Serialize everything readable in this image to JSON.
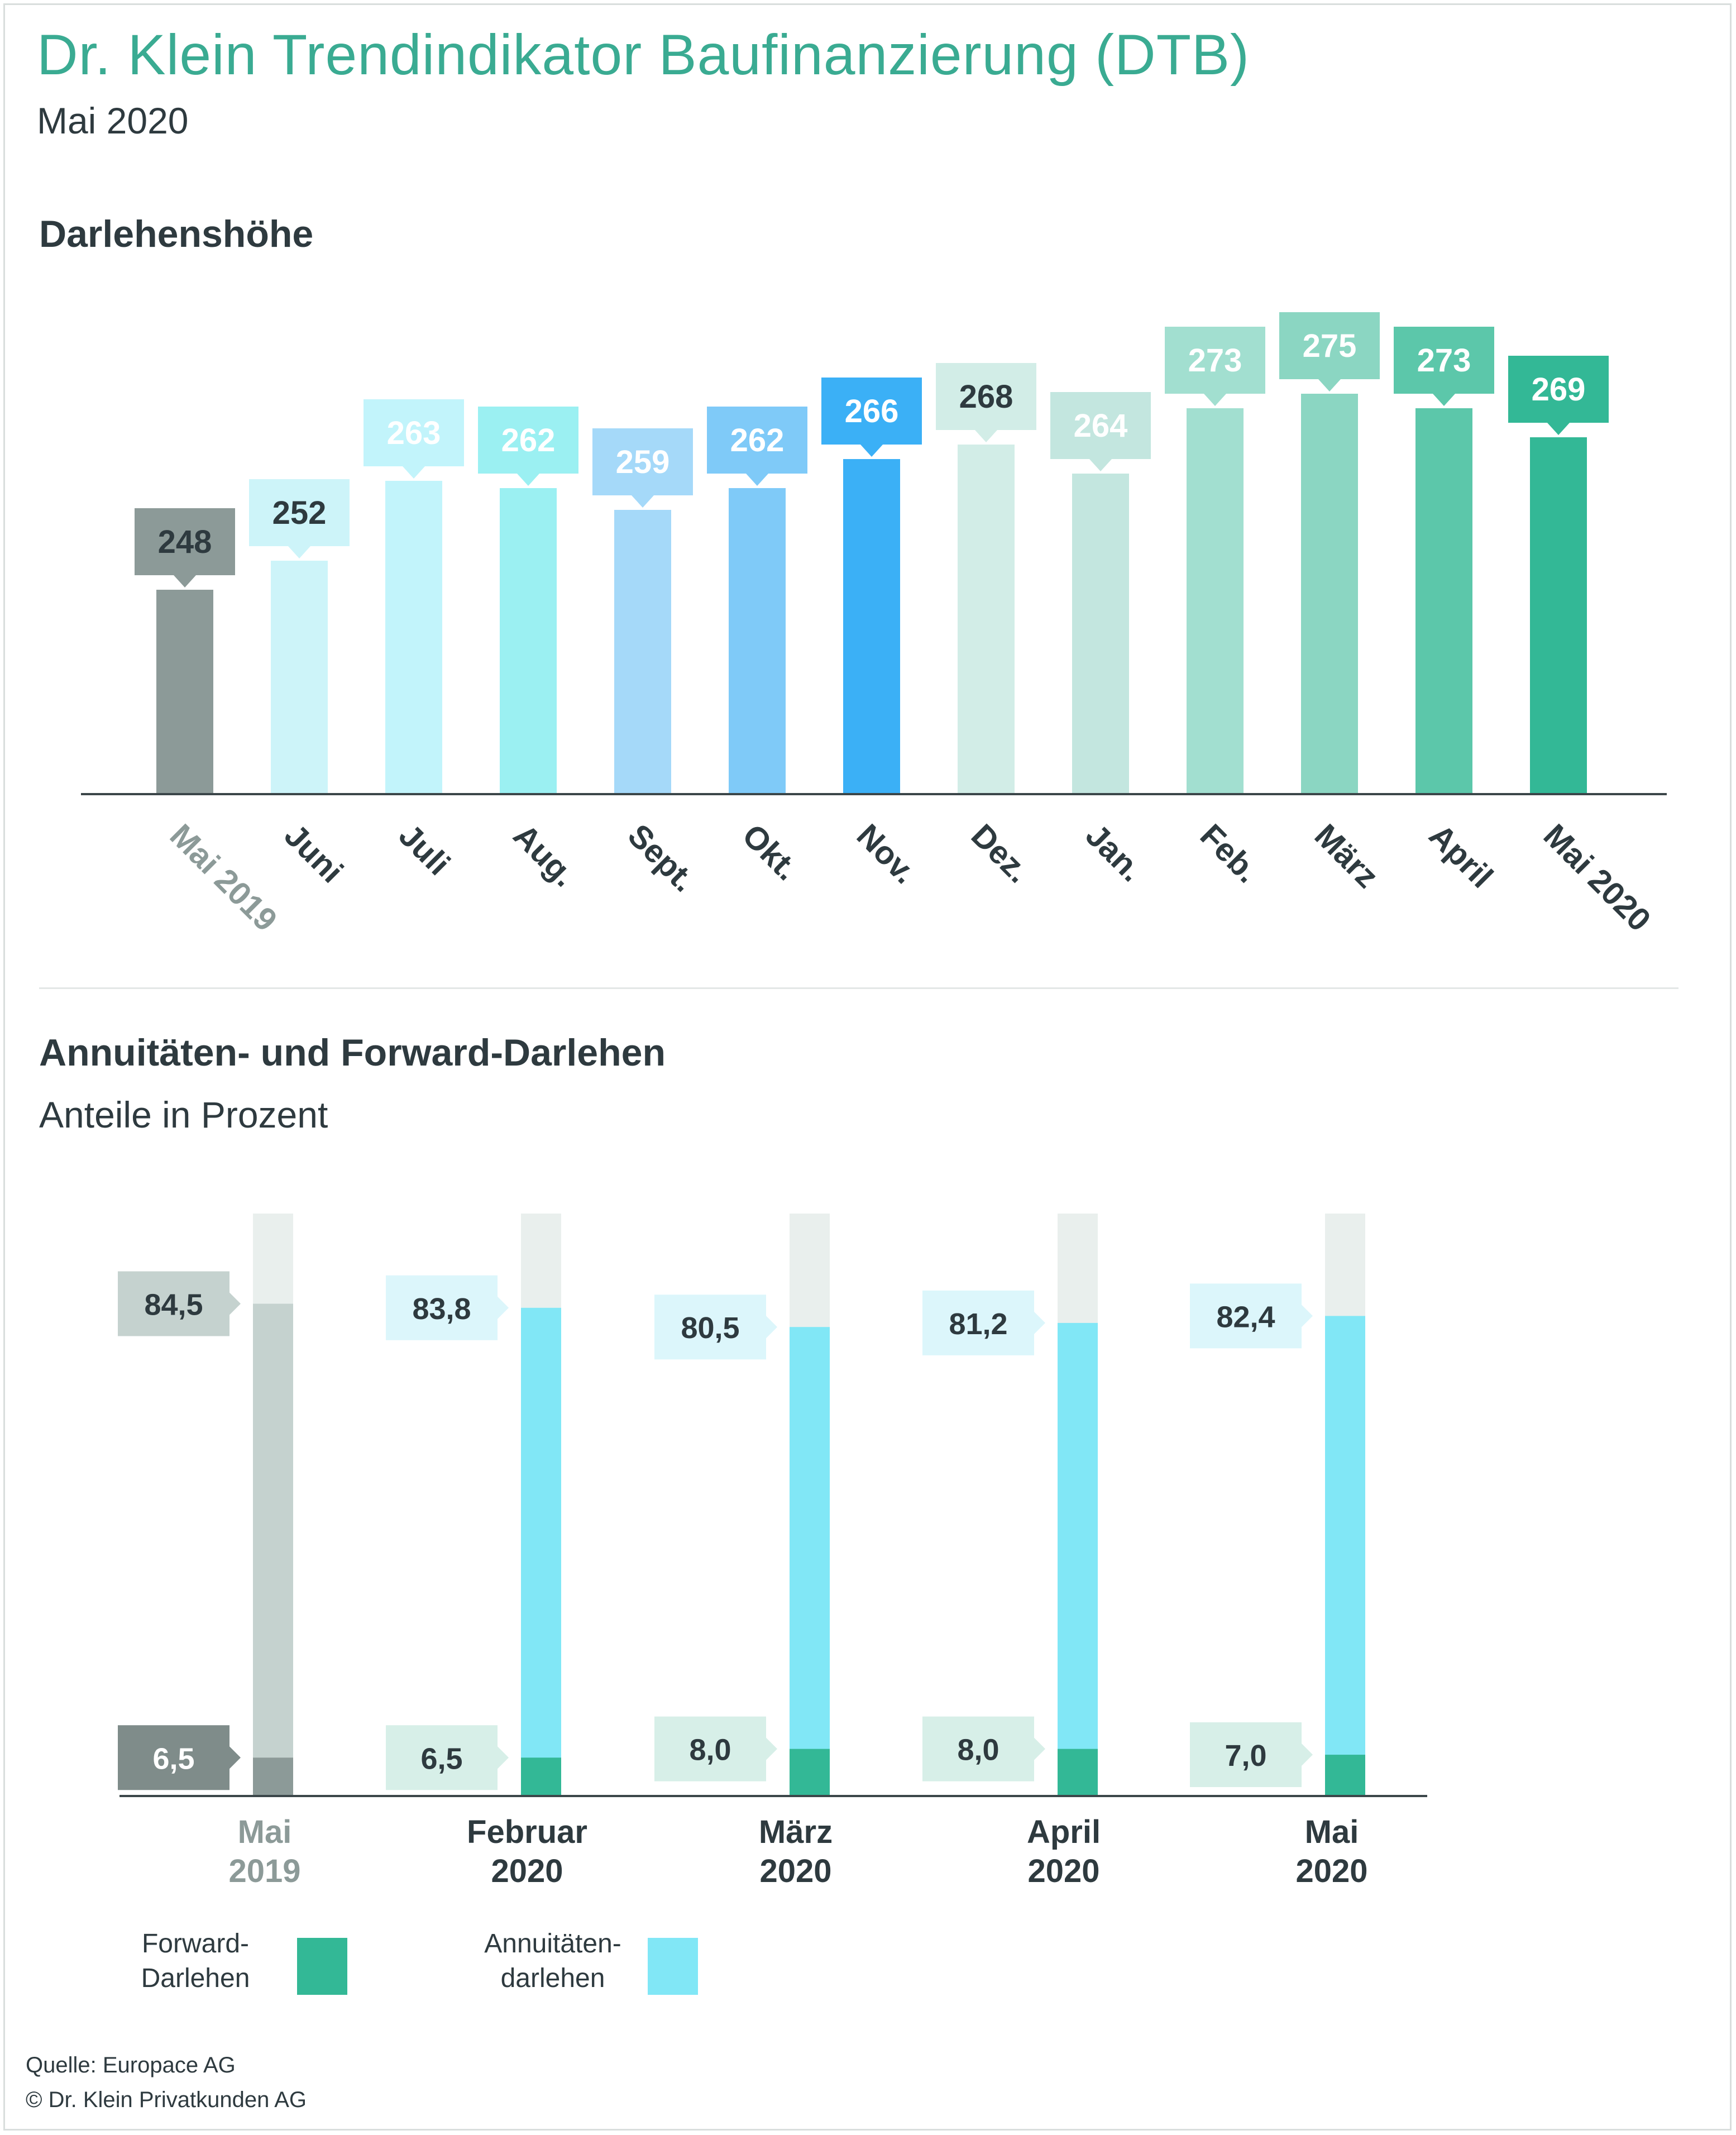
{
  "header": {
    "title": "Dr. Klein Trendindikator Baufinanzierung (DTB)",
    "subtitle": "Mai 2020"
  },
  "section1": {
    "title": "Darlehenshöhe"
  },
  "section2": {
    "title": "Annuitäten- und Forward-Darlehen",
    "subtitle": "Anteile in Prozent"
  },
  "chart_data": [
    {
      "type": "bar",
      "title": "Darlehenshöhe",
      "categories": [
        "Mai 2019",
        "Juni",
        "Juli",
        "Aug.",
        "Sept.",
        "Okt.",
        "Nov.",
        "Dez.",
        "Jan.",
        "Feb.",
        "März",
        "April",
        "Mai 2020"
      ],
      "values": [
        248,
        252,
        263,
        262,
        259,
        262,
        266,
        268,
        264,
        273,
        275,
        273,
        269
      ],
      "labels": [
        "248",
        "252",
        "263",
        "262",
        "259",
        "262",
        "266",
        "268",
        "264",
        "273",
        "275",
        "273",
        "269"
      ],
      "colors": [
        "#8c9a98",
        "#cdf4f9",
        "#c2f4fb",
        "#9bf0f2",
        "#a5d9f9",
        "#7fcaf8",
        "#3bb0f6",
        "#d2ede7",
        "#c3e6df",
        "#a2dfd0",
        "#8bd6c2",
        "#5cc7aa",
        "#33b896"
      ],
      "label_text_colors": [
        "#2e3a3f",
        "#2e3a3f",
        "#ffffff",
        "#ffffff",
        "#ffffff",
        "#ffffff",
        "#ffffff",
        "#2e3a3f",
        "#ffffff",
        "#ffffff",
        "#ffffff",
        "#ffffff",
        "#ffffff"
      ],
      "tick_colors": [
        "#8c9a98",
        "#2e3a3f",
        "#2e3a3f",
        "#2e3a3f",
        "#2e3a3f",
        "#2e3a3f",
        "#2e3a3f",
        "#2e3a3f",
        "#2e3a3f",
        "#2e3a3f",
        "#2e3a3f",
        "#2e3a3f",
        "#2e3a3f"
      ],
      "xlabel": "",
      "ylabel": "",
      "grid": false
    },
    {
      "type": "bar",
      "title": "Annuitäten- und Forward-Darlehen",
      "subtitle": "Anteile in Prozent",
      "categories": [
        [
          "Mai",
          "2019"
        ],
        [
          "Februar",
          "2020"
        ],
        [
          "März",
          "2020"
        ],
        [
          "April",
          "2020"
        ],
        [
          "Mai",
          "2020"
        ]
      ],
      "series": [
        {
          "name": "Forward-Darlehen",
          "values": [
            6.5,
            6.5,
            8.0,
            8.0,
            7.0
          ],
          "labels": [
            "6,5",
            "6,5",
            "8,0",
            "8,0",
            "7,0"
          ],
          "colors": [
            "#8c9a98",
            "#33b896",
            "#33b896",
            "#33b896",
            "#33b896"
          ],
          "label_box_colors": [
            "#7f8c8a",
            "#d7efe8",
            "#d7efe8",
            "#d7efe8",
            "#d7efe8"
          ],
          "label_text_colors": [
            "#ffffff",
            "#2e3a3f",
            "#2e3a3f",
            "#2e3a3f",
            "#2e3a3f"
          ]
        },
        {
          "name": "Annuitätendarlehen",
          "values": [
            84.5,
            83.8,
            80.5,
            81.2,
            82.4
          ],
          "labels": [
            "84,5",
            "83,8",
            "80,5",
            "81,2",
            "82,4"
          ],
          "colors": [
            "#c5d2cf",
            "#81e7f6",
            "#81e7f6",
            "#81e7f6",
            "#81e7f6"
          ],
          "label_box_colors": [
            "#c5d2cf",
            "#dcf6fb",
            "#dcf6fb",
            "#dcf6fb",
            "#dcf6fb"
          ],
          "label_text_colors": [
            "#2e3a3f",
            "#2e3a3f",
            "#2e3a3f",
            "#2e3a3f",
            "#2e3a3f"
          ]
        }
      ],
      "tick_colors": [
        "#8c9a98",
        "#2e3a3f",
        "#2e3a3f",
        "#2e3a3f",
        "#2e3a3f"
      ],
      "track_color": "#e9efed",
      "ylim": [
        0,
        100
      ],
      "grid": false
    }
  ],
  "legend": [
    {
      "label_lines": [
        "Forward-",
        "Darlehen"
      ],
      "color": "#33b896"
    },
    {
      "label_lines": [
        "Annuitäten-",
        "darlehen"
      ],
      "color": "#81e7f6"
    }
  ],
  "footer": {
    "source": "Quelle: Europace AG",
    "copyright": "© Dr. Klein Privatkunden AG"
  }
}
